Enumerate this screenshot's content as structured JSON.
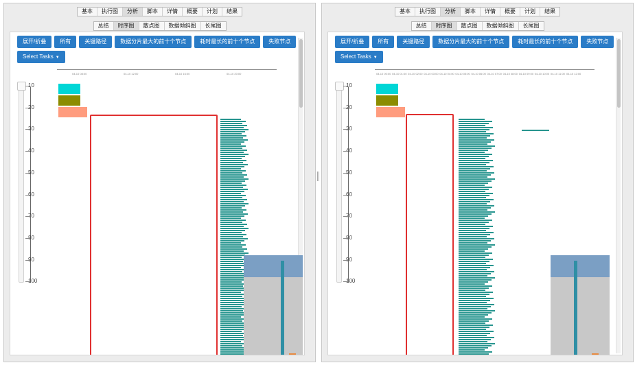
{
  "top_tabs": [
    "基本",
    "执行图",
    "分析",
    "脚本",
    "详情",
    "概要",
    "计划",
    "结果"
  ],
  "top_tabs_active": 2,
  "sub_tabs": [
    "总结",
    "时序图",
    "散点图",
    "数据倾斜图",
    "长尾图"
  ],
  "sub_tabs_active": 1,
  "buttons": [
    "展开/折叠",
    "所有",
    "关键路径",
    "数据分片最大的前十个节点",
    "耗时最长的前十个节点",
    "失败节点"
  ],
  "select_tasks": "Select Tasks",
  "y_ticks": [
    "10",
    "20",
    "30",
    "40",
    "50",
    "60",
    "70",
    "80",
    "90",
    "100"
  ],
  "colors": {
    "button": "#2a7cc7",
    "bar": "#27958f",
    "highlight": "#e03030",
    "legend1": "#00d6d6",
    "legend2": "#8c8c00",
    "legend3": "#ff9c7e",
    "minimap_selector": "#7b9fc4"
  },
  "left": {
    "top_axis_labels": [
      "04-10 08:00",
      "04-10 12:00",
      "04-10 16:00",
      "04-10 20:00"
    ]
  },
  "right": {
    "top_axis_labels": [
      "04-10 00:00",
      "04-10 01:00",
      "04-10 02:00",
      "04-10 03:00",
      "04-10 04:00",
      "04-10 05:00",
      "04-10 06:00",
      "04-10 07:00",
      "04-10 08:00",
      "04-10 09:00",
      "04-10 10:00",
      "04-10 11:00",
      "04-10 12:00"
    ]
  }
}
